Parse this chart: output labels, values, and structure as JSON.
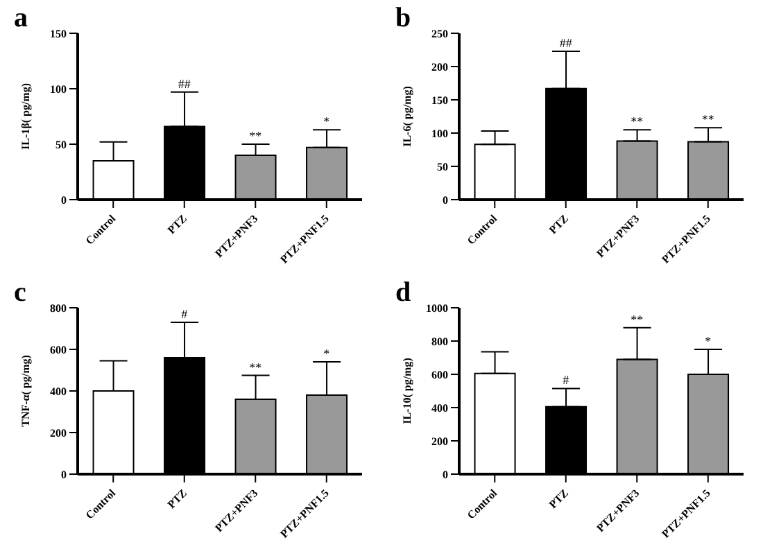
{
  "chart_data": [
    {
      "type": "bar",
      "title": "a",
      "ylabel": "IL-1β( pg/mg)",
      "categories": [
        "Control",
        "PTZ",
        "PTZ+PNF3",
        "PTZ+PNF1.5"
      ],
      "values": [
        35,
        66,
        40,
        47
      ],
      "colors": [
        "#ffffff",
        "#000000",
        "#999999",
        "#999999"
      ],
      "errors": [
        [
          35,
          52
        ],
        [
          66,
          97
        ],
        [
          40,
          50
        ],
        [
          47,
          63
        ]
      ],
      "ylim": [
        0,
        150
      ],
      "yticks": [
        0,
        50,
        100,
        150
      ],
      "grid": false,
      "legend": false,
      "annotations": [
        {
          "text": "##",
          "x": "PTZ",
          "y": 97
        },
        {
          "text": "**",
          "x": "PTZ+PNF3",
          "y": 50
        },
        {
          "text": "*",
          "x": "PTZ+PNF1.5",
          "y": 63
        }
      ]
    },
    {
      "type": "bar",
      "title": "b",
      "ylabel": "IL-6( pg/mg)",
      "categories": [
        "Control",
        "PTZ",
        "PTZ+PNF3",
        "PTZ+PNF1.5"
      ],
      "values": [
        83,
        167,
        88,
        87
      ],
      "colors": [
        "#ffffff",
        "#000000",
        "#999999",
        "#999999"
      ],
      "errors": [
        [
          83,
          103
        ],
        [
          167,
          223
        ],
        [
          88,
          105
        ],
        [
          87,
          108
        ]
      ],
      "ylim": [
        0,
        250
      ],
      "yticks": [
        0,
        50,
        100,
        150,
        200,
        250
      ],
      "grid": false,
      "legend": false,
      "annotations": [
        {
          "text": "##",
          "x": "PTZ",
          "y": 223
        },
        {
          "text": "**",
          "x": "PTZ+PNF3",
          "y": 105
        },
        {
          "text": "**",
          "x": "PTZ+PNF1.5",
          "y": 108
        }
      ]
    },
    {
      "type": "bar",
      "title": "c",
      "ylabel": "TNF-α( pg/mg)",
      "categories": [
        "Control",
        "PTZ",
        "PTZ+PNF3",
        "PTZ+PNF1.5"
      ],
      "values": [
        400,
        560,
        360,
        380
      ],
      "colors": [
        "#ffffff",
        "#000000",
        "#999999",
        "#999999"
      ],
      "errors": [
        [
          400,
          545
        ],
        [
          560,
          730
        ],
        [
          360,
          475
        ],
        [
          380,
          540
        ]
      ],
      "ylim": [
        0,
        800
      ],
      "yticks": [
        0,
        200,
        400,
        600,
        800
      ],
      "grid": false,
      "legend": false,
      "annotations": [
        {
          "text": "#",
          "x": "PTZ",
          "y": 730
        },
        {
          "text": "**",
          "x": "PTZ+PNF3",
          "y": 475
        },
        {
          "text": "*",
          "x": "PTZ+PNF1.5",
          "y": 540
        }
      ]
    },
    {
      "type": "bar",
      "title": "d",
      "ylabel": "IL-10( pg/mg)",
      "categories": [
        "Control",
        "PTZ",
        "PTZ+PNF3",
        "PTZ+PNF1.5"
      ],
      "values": [
        605,
        405,
        690,
        600
      ],
      "colors": [
        "#ffffff",
        "#000000",
        "#999999",
        "#999999"
      ],
      "errors": [
        [
          605,
          735
        ],
        [
          405,
          515
        ],
        [
          690,
          880
        ],
        [
          600,
          750
        ]
      ],
      "ylim": [
        0,
        1000
      ],
      "yticks": [
        0,
        200,
        400,
        600,
        800,
        1000
      ],
      "grid": false,
      "legend": false,
      "annotations": [
        {
          "text": "#",
          "x": "PTZ",
          "y": 515
        },
        {
          "text": "**",
          "x": "PTZ+PNF3",
          "y": 880
        },
        {
          "text": "*",
          "x": "PTZ+PNF1.5",
          "y": 750
        }
      ]
    }
  ]
}
